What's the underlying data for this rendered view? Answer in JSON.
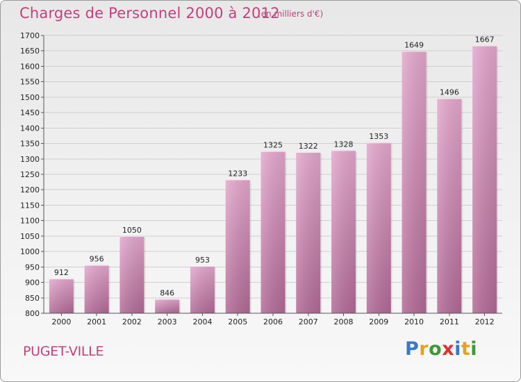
{
  "header": {
    "title": "Charges de Personnel 2000 à 2012",
    "unit_note": "(en milliers d'€)"
  },
  "footer": {
    "commune": "PUGET-VILLE",
    "logo_text": "Proxiti"
  },
  "colors": {
    "accent": "#c0407e",
    "bar_top": "#e4a8cd",
    "bar_bottom": "#b26a96",
    "logo_letters": [
      "#3a78c8",
      "#e8a020",
      "#3a9a3a",
      "#e03030",
      "#3a78c8",
      "#e8a020",
      "#3a9a3a"
    ]
  },
  "chart_data": {
    "type": "bar",
    "title": "Charges de Personnel 2000 à 2012",
    "subtitle": "(en milliers d'€)",
    "xlabel": "",
    "ylabel": "",
    "categories": [
      "2000",
      "2001",
      "2002",
      "2003",
      "2004",
      "2005",
      "2006",
      "2007",
      "2008",
      "2009",
      "2010",
      "2011",
      "2012"
    ],
    "values": [
      912,
      956,
      1050,
      846,
      953,
      1233,
      1325,
      1322,
      1328,
      1353,
      1649,
      1496,
      1667
    ],
    "ylim": [
      800,
      1700
    ],
    "yticks": [
      800,
      850,
      900,
      950,
      1000,
      1050,
      1100,
      1150,
      1200,
      1250,
      1300,
      1350,
      1400,
      1450,
      1500,
      1550,
      1600,
      1650,
      1700
    ],
    "grid": true,
    "legend": "none"
  }
}
